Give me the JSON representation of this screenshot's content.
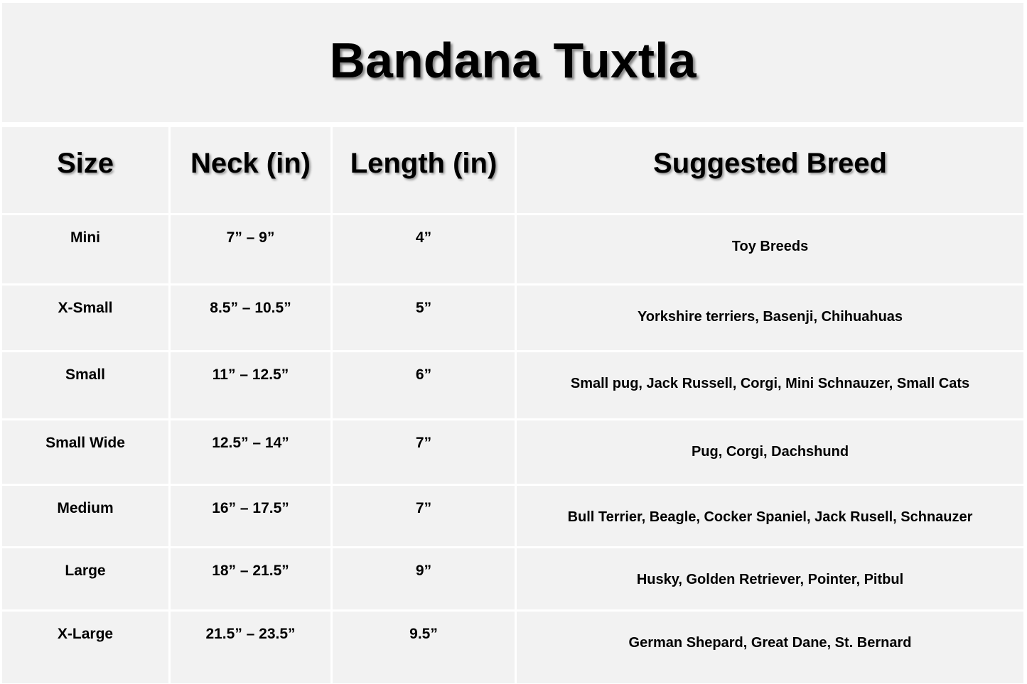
{
  "title": "Bandana Tuxtla",
  "table": {
    "headers": [
      "Size",
      "Neck (in)",
      "Length (in)",
      "Suggested Breed"
    ],
    "rows": [
      [
        "Mini",
        "7” – 9”",
        "4”",
        "Toy Breeds"
      ],
      [
        "X-Small",
        "8.5” – 10.5”",
        "5”",
        "Yorkshire terriers, Basenji, Chihuahuas"
      ],
      [
        "Small",
        "11” – 12.5”",
        "6”",
        "Small pug, Jack Russell, Corgi, Mini Schnauzer, Small Cats"
      ],
      [
        "Small Wide",
        "12.5” – 14”",
        "7”",
        "Pug, Corgi, Dachshund"
      ],
      [
        "Medium",
        "16” – 17.5”",
        "7”",
        "Bull Terrier,  Beagle, Cocker Spaniel, Jack Rusell, Schnauzer"
      ],
      [
        "Large",
        "18” – 21.5”",
        "9”",
        "Husky, Golden Retriever, Pointer, Pitbul"
      ],
      [
        "X-Large",
        "21.5” – 23.5”",
        "9.5”",
        "German Shepard, Great Dane, St. Bernard"
      ]
    ]
  }
}
